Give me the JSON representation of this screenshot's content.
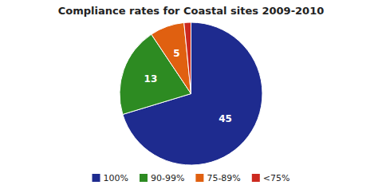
{
  "chart_data": {
    "type": "pie",
    "title": "Compliance rates for Coastal sites 2009-2010",
    "categories": [
      "100%",
      "90-99%",
      "75-89%",
      "<75%"
    ],
    "values": [
      45,
      13,
      5,
      1
    ],
    "colors": [
      "#1e2b8f",
      "#2d8b22",
      "#e06010",
      "#cc2a20"
    ],
    "data_labels": true,
    "value_labels": [
      "45",
      "13",
      "5",
      null
    ],
    "legend": "bottom"
  }
}
